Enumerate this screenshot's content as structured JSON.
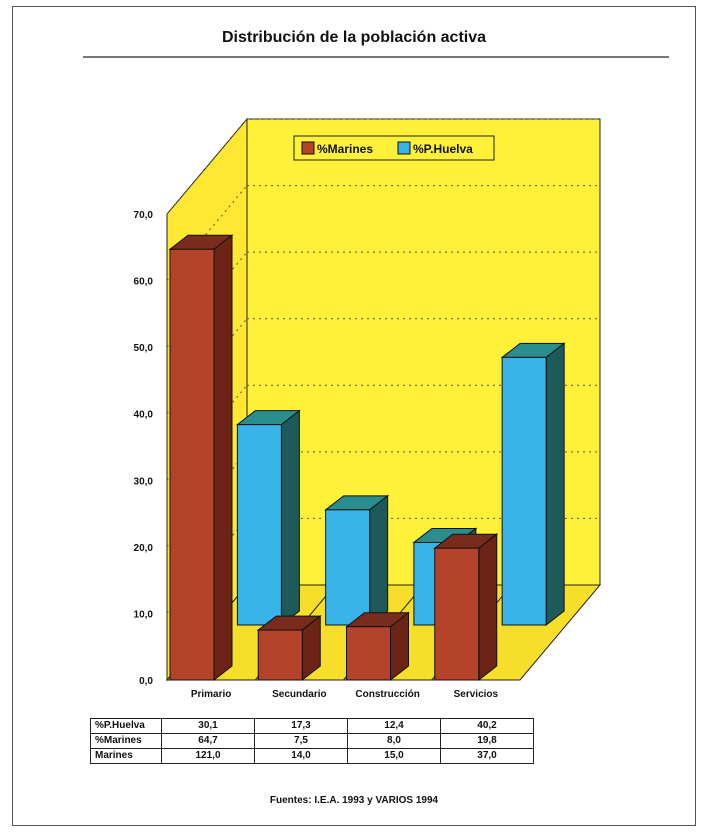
{
  "title": "Distribución de la población activa",
  "source": "Fuentes: I.E.A. 1993 y VARIOS 1994",
  "colors": {
    "marines": "#b5432a",
    "marines_top": "#7a2c1c",
    "marines_side": "#6b2416",
    "huelva": "#38b4e8",
    "huelva_top": "#2a8e8e",
    "huelva_side": "#1f5a5a",
    "back_wall": "#fff03a",
    "side_wall": "#ffe733",
    "floor": "#f7de2a",
    "grid": "#555555"
  },
  "chart_data": {
    "type": "bar",
    "title": "Distribución de la población activa",
    "categories": [
      "Primario",
      "Secundario",
      "Construcción",
      "Servicios"
    ],
    "series": [
      {
        "name": "%Marines",
        "values": [
          64.7,
          7.5,
          8.0,
          19.8
        ]
      },
      {
        "name": "%P.Huelva",
        "values": [
          30.1,
          17.3,
          12.4,
          40.2
        ]
      }
    ],
    "yticks": [
      "0,0",
      "10,0",
      "20,0",
      "30,0",
      "40,0",
      "50,0",
      "60,0",
      "70,0"
    ],
    "ylim": [
      0,
      70
    ],
    "grid": true,
    "legend_position": "top-center",
    "three_d": true
  },
  "table": {
    "rows": [
      {
        "label": "%P.Huelva",
        "values": [
          "30,1",
          "17,3",
          "12,4",
          "40,2"
        ]
      },
      {
        "label": "%Marines",
        "values": [
          "64,7",
          "7,5",
          "8,0",
          "19,8"
        ]
      },
      {
        "label": "Marines",
        "values": [
          "121,0",
          "14,0",
          "15,0",
          "37,0"
        ]
      }
    ]
  }
}
